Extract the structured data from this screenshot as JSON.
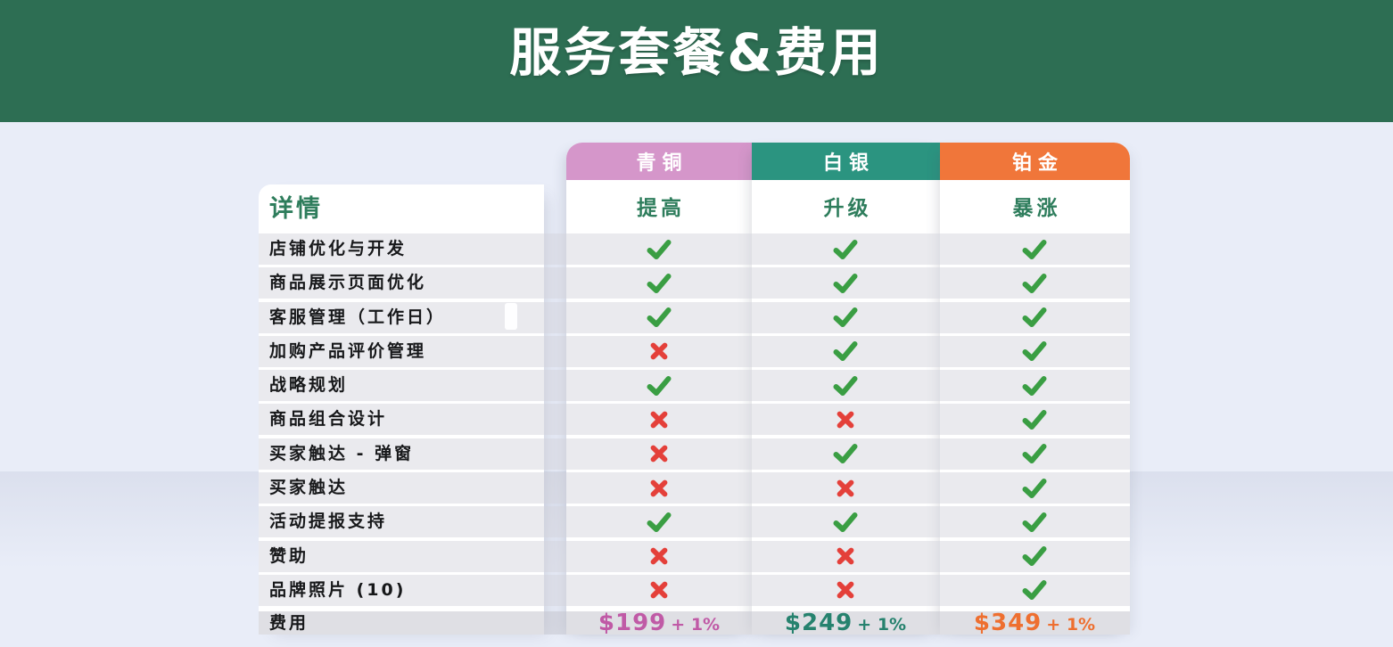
{
  "banner": {
    "title": "服务套餐&费用",
    "bg_color": "#2d6e53"
  },
  "table": {
    "details_header": "详情",
    "plans": [
      {
        "name": "青铜",
        "subtitle": "提高",
        "color": "#d596ca",
        "price": "$199",
        "price_suffix": "+ 1%",
        "price_color": "#c05aa6"
      },
      {
        "name": "白银",
        "subtitle": "升级",
        "color": "#2b9480",
        "price": "$249",
        "price_suffix": "+ 1%",
        "price_color": "#26826e"
      },
      {
        "name": "铂金",
        "subtitle": "暴涨",
        "color": "#f0763a",
        "price": "$349",
        "price_suffix": "+ 1%",
        "price_color": "#ee6f30"
      }
    ],
    "rows": [
      {
        "label": "店铺优化与开发",
        "values": [
          "check",
          "check",
          "check"
        ]
      },
      {
        "label": "商品展示页面优化",
        "values": [
          "check",
          "check",
          "check"
        ]
      },
      {
        "label": "客服管理（工作日）",
        "values": [
          "check",
          "check",
          "check"
        ]
      },
      {
        "label": "加购产品评价管理",
        "values": [
          "cross",
          "check",
          "check"
        ]
      },
      {
        "label": "战略规划",
        "values": [
          "check",
          "check",
          "check"
        ]
      },
      {
        "label": "商品组合设计",
        "values": [
          "cross",
          "cross",
          "check"
        ]
      },
      {
        "label": "买家触达 - 弹窗",
        "values": [
          "cross",
          "check",
          "check"
        ]
      },
      {
        "label": "买家触达",
        "values": [
          "cross",
          "cross",
          "check"
        ]
      },
      {
        "label": "活动提报支持",
        "values": [
          "check",
          "check",
          "check"
        ]
      },
      {
        "label": "赞助",
        "values": [
          "cross",
          "cross",
          "check"
        ]
      },
      {
        "label": "品牌照片 (10)",
        "values": [
          "cross",
          "cross",
          "check"
        ]
      }
    ],
    "price_row_label": "费用",
    "icons": {
      "check_color": "#3a9e43",
      "cross_color": "#e4403a"
    }
  }
}
